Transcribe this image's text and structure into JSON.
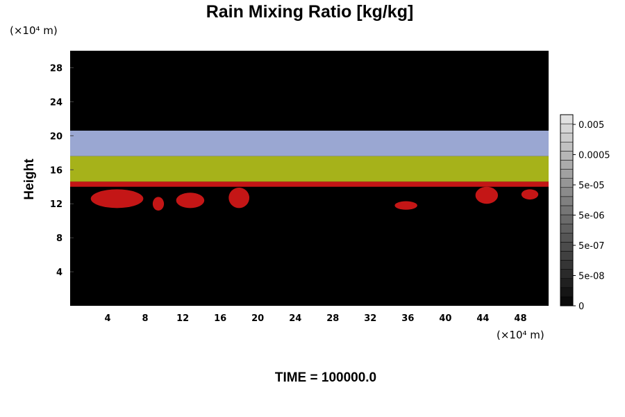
{
  "chart_data": {
    "type": "heatmap",
    "title": "Rain Mixing Ratio [kg/kg]",
    "ylabel": "Height",
    "x_unit": "(×10⁴ m)",
    "y_unit": "(×10⁴ m)",
    "xlim": [
      0,
      51
    ],
    "ylim": [
      0,
      30
    ],
    "x_ticks": [
      4,
      8,
      12,
      16,
      20,
      24,
      28,
      32,
      36,
      40,
      44,
      48
    ],
    "y_ticks": [
      4,
      8,
      12,
      16,
      20,
      24,
      28
    ],
    "x_tick_labels": [
      "4",
      "8",
      "12",
      "16",
      "20",
      "24",
      "28",
      "32",
      "36",
      "40",
      "44",
      "48"
    ],
    "y_tick_labels": [
      "4",
      "8",
      "12",
      "16",
      "20",
      "24",
      "28"
    ],
    "time_label": "TIME = 100000.0",
    "colorbar": {
      "tick_labels": [
        "0",
        "5e-08",
        "5e-07",
        "5e-06",
        "5e-05",
        "0.0005",
        "0.005"
      ],
      "levels": 21
    },
    "background_color": "#000000",
    "layers": [
      {
        "name": "upper layer",
        "y_bottom": 17.6,
        "y_top": 20.6,
        "color": "#9aa7d2"
      },
      {
        "name": "middle layer",
        "y_bottom": 14.6,
        "y_top": 17.6,
        "color": "#a6b21a"
      },
      {
        "name": "lower layer",
        "y_bottom": 14.0,
        "y_top": 14.6,
        "color": "#c41616"
      }
    ],
    "blobs": [
      {
        "x": 5.0,
        "y": 12.6,
        "rx": 2.8,
        "ry": 1.1
      },
      {
        "x": 9.4,
        "y": 12.0,
        "rx": 0.6,
        "ry": 0.8
      },
      {
        "x": 12.8,
        "y": 12.4,
        "rx": 1.5,
        "ry": 0.9
      },
      {
        "x": 18.0,
        "y": 12.7,
        "rx": 1.1,
        "ry": 1.2
      },
      {
        "x": 35.8,
        "y": 11.8,
        "rx": 1.2,
        "ry": 0.5
      },
      {
        "x": 44.4,
        "y": 13.0,
        "rx": 1.2,
        "ry": 1.0
      },
      {
        "x": 49.0,
        "y": 13.1,
        "rx": 0.9,
        "ry": 0.6
      }
    ]
  }
}
